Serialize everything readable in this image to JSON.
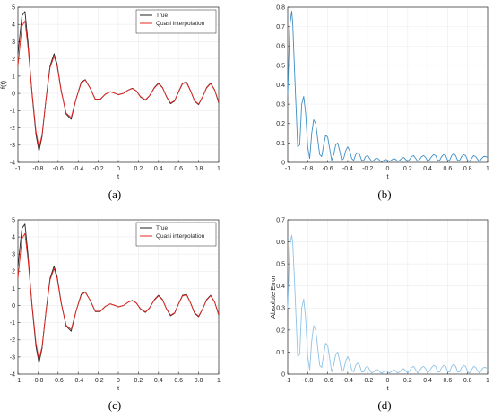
{
  "colors": {
    "true": "#222222",
    "quasi": "#e8251f",
    "error_dark": "#3d8fc6",
    "error_light": "#8ec3e6",
    "axis": "#262626"
  },
  "chart_data": [
    {
      "id": "a",
      "caption": "(a)",
      "type": "line",
      "xlim": [
        -1,
        1
      ],
      "ylim": [
        -4,
        5
      ],
      "xticks": [
        -1,
        -0.8,
        -0.6,
        -0.4,
        -0.2,
        0,
        0.2,
        0.4,
        0.6,
        0.8,
        1
      ],
      "yticks": [
        -4,
        -3,
        -2,
        -1,
        0,
        1,
        2,
        3,
        4,
        5
      ],
      "xlabel": "t",
      "ylabel": "f(t)",
      "legend": "top-right",
      "series": [
        {
          "name": "True",
          "color_key": "true",
          "x": [
            -1,
            -0.96,
            -0.93,
            -0.9,
            -0.86,
            -0.82,
            -0.79,
            -0.76,
            -0.72,
            -0.68,
            -0.64,
            -0.61,
            -0.57,
            -0.52,
            -0.47,
            -0.42,
            -0.37,
            -0.33,
            -0.28,
            -0.23,
            -0.18,
            -0.13,
            -0.08,
            -0.03,
            0,
            0.05,
            0.1,
            0.14,
            0.18,
            0.22,
            0.27,
            0.31,
            0.36,
            0.4,
            0.44,
            0.48,
            0.52,
            0.56,
            0.6,
            0.64,
            0.68,
            0.72,
            0.76,
            0.8,
            0.84,
            0.88,
            0.92,
            0.96,
            1
          ],
          "y": [
            2.3,
            4.5,
            4.75,
            3.0,
            0.0,
            -2.4,
            -3.35,
            -2.5,
            -0.3,
            1.6,
            2.3,
            1.7,
            0.2,
            -1.2,
            -1.5,
            -0.3,
            0.65,
            0.8,
            0.3,
            -0.35,
            -0.35,
            -0.05,
            0.1,
            0.0,
            -0.08,
            0.0,
            0.2,
            0.3,
            0.15,
            -0.2,
            -0.4,
            -0.15,
            0.35,
            0.6,
            0.35,
            -0.2,
            -0.6,
            -0.45,
            0.1,
            0.6,
            0.65,
            0.15,
            -0.45,
            -0.65,
            -0.2,
            0.35,
            0.6,
            0.2,
            -0.55
          ]
        },
        {
          "name": "Quasi interpolation",
          "color_key": "quasi",
          "x": [
            -1,
            -0.96,
            -0.93,
            -0.9,
            -0.86,
            -0.82,
            -0.79,
            -0.76,
            -0.72,
            -0.68,
            -0.64,
            -0.61,
            -0.57,
            -0.52,
            -0.47,
            -0.42,
            -0.37,
            -0.33,
            -0.28,
            -0.23,
            -0.18,
            -0.13,
            -0.08,
            -0.03,
            0,
            0.05,
            0.1,
            0.14,
            0.18,
            0.22,
            0.27,
            0.31,
            0.36,
            0.4,
            0.44,
            0.48,
            0.52,
            0.56,
            0.6,
            0.64,
            0.68,
            0.72,
            0.76,
            0.8,
            0.84,
            0.88,
            0.92,
            0.96,
            1
          ],
          "y": [
            1.6,
            3.9,
            4.2,
            2.7,
            0.1,
            -2.2,
            -3.15,
            -2.4,
            -0.35,
            1.5,
            2.15,
            1.6,
            0.15,
            -1.15,
            -1.4,
            -0.3,
            0.6,
            0.78,
            0.3,
            -0.33,
            -0.33,
            -0.05,
            0.1,
            0.0,
            -0.07,
            0.0,
            0.2,
            0.28,
            0.14,
            -0.18,
            -0.37,
            -0.14,
            0.32,
            0.56,
            0.33,
            -0.18,
            -0.56,
            -0.42,
            0.09,
            0.56,
            0.62,
            0.14,
            -0.42,
            -0.62,
            -0.19,
            0.32,
            0.57,
            0.19,
            -0.5
          ]
        }
      ]
    },
    {
      "id": "b",
      "caption": "(b)",
      "type": "line",
      "xlim": [
        -1,
        1
      ],
      "ylim": [
        0,
        0.8
      ],
      "xticks": [
        -1,
        -0.8,
        -0.6,
        -0.4,
        -0.2,
        0,
        0.2,
        0.4,
        0.6,
        0.8,
        1
      ],
      "yticks": [
        0,
        0.1,
        0.2,
        0.3,
        0.4,
        0.5,
        0.6,
        0.7,
        0.8
      ],
      "xlabel": "t",
      "ylabel": "",
      "series": [
        {
          "color_key": "error_dark",
          "x": [
            -1,
            -0.98,
            -0.96,
            -0.95,
            -0.93,
            -0.9,
            -0.88,
            -0.86,
            -0.84,
            -0.82,
            -0.8,
            -0.78,
            -0.76,
            -0.74,
            -0.72,
            -0.7,
            -0.68,
            -0.66,
            -0.64,
            -0.62,
            -0.6,
            -0.58,
            -0.56,
            -0.54,
            -0.52,
            -0.5,
            -0.48,
            -0.46,
            -0.44,
            -0.42,
            -0.4,
            -0.38,
            -0.36,
            -0.34,
            -0.32,
            -0.3,
            -0.28,
            -0.26,
            -0.24,
            -0.22,
            -0.2,
            -0.18,
            -0.16,
            -0.14,
            -0.12,
            -0.1,
            -0.08,
            -0.06,
            -0.04,
            -0.02,
            0,
            0.02,
            0.04,
            0.06,
            0.08,
            0.1,
            0.12,
            0.14,
            0.16,
            0.18,
            0.2,
            0.22,
            0.24,
            0.26,
            0.28,
            0.3,
            0.32,
            0.34,
            0.36,
            0.38,
            0.4,
            0.42,
            0.44,
            0.46,
            0.48,
            0.5,
            0.52,
            0.54,
            0.56,
            0.58,
            0.6,
            0.62,
            0.64,
            0.66,
            0.68,
            0.7,
            0.72,
            0.74,
            0.76,
            0.78,
            0.8,
            0.82,
            0.84,
            0.86,
            0.88,
            0.9,
            0.92,
            0.94,
            0.96,
            0.98,
            1
          ],
          "y": [
            0.35,
            0.7,
            0.78,
            0.72,
            0.45,
            0.08,
            0.09,
            0.3,
            0.34,
            0.25,
            0.08,
            0.02,
            0.15,
            0.22,
            0.2,
            0.12,
            0.04,
            0.03,
            0.09,
            0.14,
            0.13,
            0.07,
            0.01,
            0.04,
            0.09,
            0.1,
            0.06,
            0.01,
            0.02,
            0.06,
            0.08,
            0.06,
            0.02,
            0.01,
            0.04,
            0.05,
            0.04,
            0.01,
            0.01,
            0.03,
            0.035,
            0.02,
            0.005,
            0.01,
            0.02,
            0.02,
            0.01,
            0.003,
            0.01,
            0.015,
            0.01,
            0.005,
            0.012,
            0.02,
            0.015,
            0.005,
            0.01,
            0.02,
            0.025,
            0.015,
            0.005,
            0.015,
            0.03,
            0.035,
            0.02,
            0.005,
            0.015,
            0.03,
            0.035,
            0.025,
            0.005,
            0.015,
            0.03,
            0.04,
            0.035,
            0.01,
            0.01,
            0.03,
            0.04,
            0.035,
            0.01,
            0.01,
            0.035,
            0.045,
            0.035,
            0.01,
            0.01,
            0.03,
            0.04,
            0.035,
            0.01,
            0.005,
            0.02,
            0.035,
            0.03,
            0.015,
            0.005,
            0.02,
            0.03,
            0.03,
            0.025
          ]
        }
      ]
    },
    {
      "id": "c",
      "caption": "(c)",
      "type": "line",
      "xlim": [
        -1,
        1
      ],
      "ylim": [
        -4,
        5
      ],
      "xticks": [
        -1,
        -0.8,
        -0.6,
        -0.4,
        -0.2,
        0,
        0.2,
        0.4,
        0.6,
        0.8,
        1
      ],
      "yticks": [
        -4,
        -3,
        -2,
        -1,
        0,
        1,
        2,
        3,
        4,
        5
      ],
      "xlabel": "t",
      "ylabel": "",
      "legend": "top-right",
      "series": [
        {
          "name": "True",
          "color_key": "true",
          "x": [
            -1,
            -0.96,
            -0.93,
            -0.9,
            -0.86,
            -0.82,
            -0.79,
            -0.76,
            -0.72,
            -0.68,
            -0.64,
            -0.61,
            -0.57,
            -0.52,
            -0.47,
            -0.42,
            -0.37,
            -0.33,
            -0.28,
            -0.23,
            -0.18,
            -0.13,
            -0.08,
            -0.03,
            0,
            0.05,
            0.1,
            0.14,
            0.18,
            0.22,
            0.27,
            0.31,
            0.36,
            0.4,
            0.44,
            0.48,
            0.52,
            0.56,
            0.6,
            0.64,
            0.68,
            0.72,
            0.76,
            0.8,
            0.84,
            0.88,
            0.92,
            0.96,
            1
          ],
          "y": [
            2.3,
            4.5,
            4.75,
            3.0,
            0.0,
            -2.4,
            -3.35,
            -2.5,
            -0.3,
            1.6,
            2.3,
            1.7,
            0.2,
            -1.2,
            -1.5,
            -0.3,
            0.65,
            0.8,
            0.3,
            -0.35,
            -0.35,
            -0.05,
            0.1,
            0.0,
            -0.08,
            0.0,
            0.2,
            0.3,
            0.15,
            -0.2,
            -0.4,
            -0.15,
            0.35,
            0.6,
            0.35,
            -0.2,
            -0.6,
            -0.45,
            0.1,
            0.6,
            0.65,
            0.15,
            -0.45,
            -0.65,
            -0.2,
            0.35,
            0.6,
            0.2,
            -0.55
          ]
        },
        {
          "name": "Quasi interpolation",
          "color_key": "quasi",
          "x": [
            -1,
            -0.96,
            -0.93,
            -0.9,
            -0.86,
            -0.82,
            -0.79,
            -0.76,
            -0.72,
            -0.68,
            -0.64,
            -0.61,
            -0.57,
            -0.52,
            -0.47,
            -0.42,
            -0.37,
            -0.33,
            -0.28,
            -0.23,
            -0.18,
            -0.13,
            -0.08,
            -0.03,
            0,
            0.05,
            0.1,
            0.14,
            0.18,
            0.22,
            0.27,
            0.31,
            0.36,
            0.4,
            0.44,
            0.48,
            0.52,
            0.56,
            0.6,
            0.64,
            0.68,
            0.72,
            0.76,
            0.8,
            0.84,
            0.88,
            0.92,
            0.96,
            1
          ],
          "y": [
            1.6,
            3.9,
            4.2,
            2.7,
            0.1,
            -2.2,
            -3.15,
            -2.4,
            -0.35,
            1.5,
            2.15,
            1.6,
            0.15,
            -1.15,
            -1.4,
            -0.3,
            0.6,
            0.78,
            0.3,
            -0.33,
            -0.33,
            -0.05,
            0.1,
            0.0,
            -0.07,
            0.0,
            0.2,
            0.28,
            0.14,
            -0.18,
            -0.37,
            -0.14,
            0.32,
            0.56,
            0.33,
            -0.18,
            -0.56,
            -0.42,
            0.09,
            0.56,
            0.62,
            0.14,
            -0.42,
            -0.62,
            -0.19,
            0.32,
            0.57,
            0.19,
            -0.5
          ]
        }
      ]
    },
    {
      "id": "d",
      "caption": "(d)",
      "type": "line",
      "xlim": [
        -1,
        1
      ],
      "ylim": [
        0,
        0.7
      ],
      "xticks": [
        -1,
        -0.8,
        -0.6,
        -0.4,
        -0.2,
        0,
        0.2,
        0.4,
        0.6,
        0.8,
        1
      ],
      "yticks": [
        0,
        0.1,
        0.2,
        0.3,
        0.4,
        0.5,
        0.6,
        0.7
      ],
      "xlabel": "t",
      "ylabel": "Absolute Error",
      "series": [
        {
          "color_key": "error_light",
          "x": [
            -1,
            -0.98,
            -0.96,
            -0.95,
            -0.93,
            -0.9,
            -0.88,
            -0.86,
            -0.84,
            -0.82,
            -0.8,
            -0.78,
            -0.76,
            -0.74,
            -0.72,
            -0.7,
            -0.68,
            -0.66,
            -0.64,
            -0.62,
            -0.6,
            -0.58,
            -0.56,
            -0.54,
            -0.52,
            -0.5,
            -0.48,
            -0.46,
            -0.44,
            -0.42,
            -0.4,
            -0.38,
            -0.36,
            -0.34,
            -0.32,
            -0.3,
            -0.28,
            -0.26,
            -0.24,
            -0.22,
            -0.2,
            -0.18,
            -0.16,
            -0.14,
            -0.12,
            -0.1,
            -0.08,
            -0.06,
            -0.04,
            -0.02,
            0,
            0.02,
            0.04,
            0.06,
            0.08,
            0.1,
            0.12,
            0.14,
            0.16,
            0.18,
            0.2,
            0.22,
            0.24,
            0.26,
            0.28,
            0.3,
            0.32,
            0.34,
            0.36,
            0.38,
            0.4,
            0.42,
            0.44,
            0.46,
            0.48,
            0.5,
            0.52,
            0.54,
            0.56,
            0.58,
            0.6,
            0.62,
            0.64,
            0.66,
            0.68,
            0.7,
            0.72,
            0.74,
            0.76,
            0.78,
            0.8,
            0.82,
            0.84,
            0.86,
            0.88,
            0.9,
            0.92,
            0.94,
            0.96,
            0.98,
            1
          ],
          "y": [
            0.3,
            0.58,
            0.63,
            0.6,
            0.4,
            0.08,
            0.09,
            0.3,
            0.34,
            0.25,
            0.08,
            0.02,
            0.15,
            0.22,
            0.2,
            0.12,
            0.04,
            0.03,
            0.09,
            0.14,
            0.13,
            0.07,
            0.01,
            0.04,
            0.09,
            0.1,
            0.06,
            0.01,
            0.02,
            0.06,
            0.08,
            0.06,
            0.02,
            0.01,
            0.04,
            0.05,
            0.04,
            0.01,
            0.01,
            0.03,
            0.035,
            0.02,
            0.005,
            0.01,
            0.02,
            0.02,
            0.01,
            0.003,
            0.01,
            0.015,
            0.01,
            0.005,
            0.012,
            0.02,
            0.015,
            0.005,
            0.01,
            0.02,
            0.025,
            0.015,
            0.005,
            0.015,
            0.03,
            0.035,
            0.02,
            0.005,
            0.015,
            0.03,
            0.035,
            0.025,
            0.005,
            0.015,
            0.03,
            0.04,
            0.035,
            0.01,
            0.01,
            0.03,
            0.04,
            0.035,
            0.01,
            0.01,
            0.035,
            0.045,
            0.035,
            0.01,
            0.01,
            0.03,
            0.04,
            0.035,
            0.01,
            0.005,
            0.02,
            0.035,
            0.03,
            0.015,
            0.005,
            0.02,
            0.03,
            0.03,
            0.025
          ]
        }
      ]
    }
  ]
}
